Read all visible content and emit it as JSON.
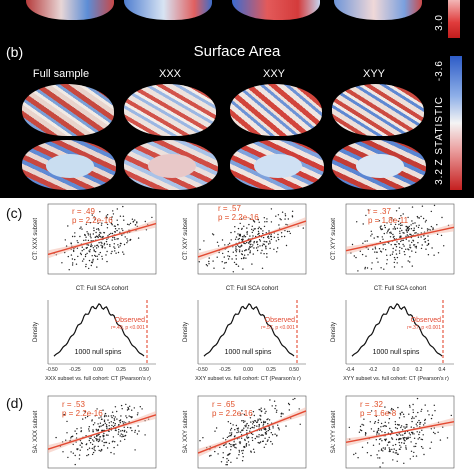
{
  "top_colorbar_label": "3.0",
  "panel_b": {
    "label": "(b)",
    "title": "Surface Area",
    "columns": [
      "Full sample",
      "XXX",
      "XXY",
      "XYY"
    ],
    "colorbar": {
      "top": "-3.6",
      "middle": "Z STATISTIC",
      "bottom": "3.2"
    }
  },
  "panel_c": {
    "label": "(c)",
    "scatter": [
      {
        "ylabel": "CT: XXX subset",
        "xlabel": "CT: Full SCA cohort",
        "r": "r = .49",
        "p": "p = 2.2e-16"
      },
      {
        "ylabel": "CT: XXY subset",
        "xlabel": "CT: Full SCA cohort",
        "r": "r = .57",
        "p": "p = 2.2e-16"
      },
      {
        "ylabel": "CT: XYY subset",
        "xlabel": "CT: Full SCA cohort",
        "r": "r = .37",
        "p": "p = 1.8e-11"
      }
    ],
    "density": [
      {
        "ylabel": "Density",
        "xlabel": "XXX subset vs. full cohort: CT (Pearson's r)",
        "spins": "1000 null spins",
        "observed": "Observed",
        "observed_sub": "r=.49, p <0.001",
        "ticks": [
          "-0.50",
          "-0.25",
          "0.00",
          "0.25",
          "0.50"
        ]
      },
      {
        "ylabel": "Density",
        "xlabel": "XXY subset vs. full cohort: CT (Pearson's r)",
        "spins": "1000 null spins",
        "observed": "Observed",
        "observed_sub": "r=.57, p <0.001",
        "ticks": [
          "-0.50",
          "-0.25",
          "0.00",
          "0.25",
          "0.50"
        ]
      },
      {
        "ylabel": "Density",
        "xlabel": "XYY subset vs. full cohort: CT (Pearson's r)",
        "spins": "1000 null spins",
        "observed": "Observed",
        "observed_sub": "r=.37, p <0.001",
        "ticks": [
          "-0.4",
          "-0.2",
          "0.0",
          "0.2",
          "0.4"
        ]
      }
    ]
  },
  "panel_d": {
    "label": "(d)",
    "scatter": [
      {
        "ylabel": "SA: XXX subset",
        "r": "r = .53",
        "p": "p = 2.2e-16"
      },
      {
        "ylabel": "SA: XXY subset",
        "r": "r = .65",
        "p": "p = 2.2e-16"
      },
      {
        "ylabel": "SA: XYY subset",
        "r": "r = .32",
        "p": "p = 1.6e-8"
      }
    ]
  },
  "colors": {
    "fit_line": "#e34a33",
    "observed": "#e34a33",
    "point": "#222222",
    "red": "#d7301f",
    "blue": "#3a7bd5"
  }
}
